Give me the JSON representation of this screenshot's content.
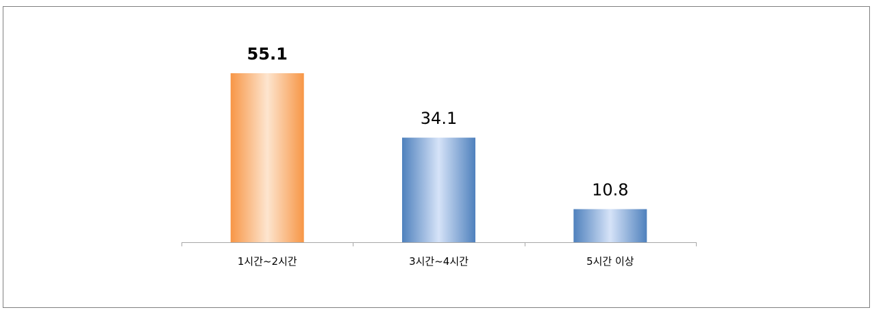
{
  "chart_data": {
    "type": "bar",
    "categories": [
      "1시간~2시간",
      "3시간~4시간",
      "5시간 이상"
    ],
    "values": [
      55.1,
      34.1,
      10.8
    ],
    "value_labels": [
      "55.1",
      "34.1",
      "10.8"
    ],
    "highlight_index": 0,
    "title": "",
    "xlabel": "",
    "ylabel": "",
    "ylim": [
      0,
      55.1
    ],
    "grid": false,
    "legend": "none",
    "colors": {
      "highlight_edge": "#f79646",
      "highlight_center": "#fde5cf",
      "normal_edge": "#4f81bd",
      "normal_center": "#d6e3f8",
      "axis": "#a6a6a6"
    }
  }
}
